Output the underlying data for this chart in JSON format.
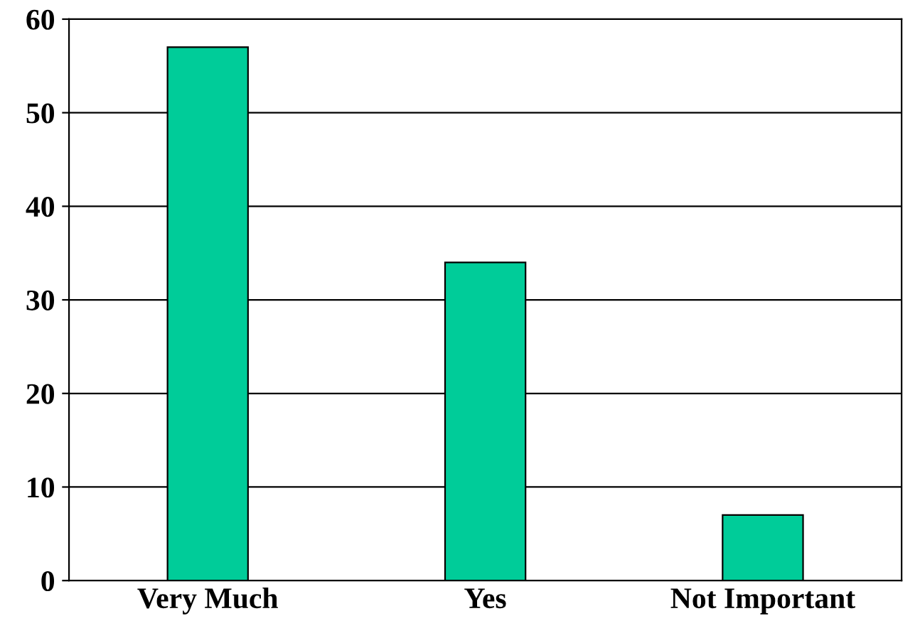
{
  "chart_data": {
    "type": "bar",
    "categories": [
      "Very Much",
      "Yes",
      "Not Important"
    ],
    "values": [
      57,
      34,
      7
    ],
    "color": "#00cc99",
    "ylim": [
      0,
      60
    ],
    "yticks": [
      0,
      10,
      20,
      30,
      40,
      50,
      60
    ],
    "grid": "y"
  }
}
